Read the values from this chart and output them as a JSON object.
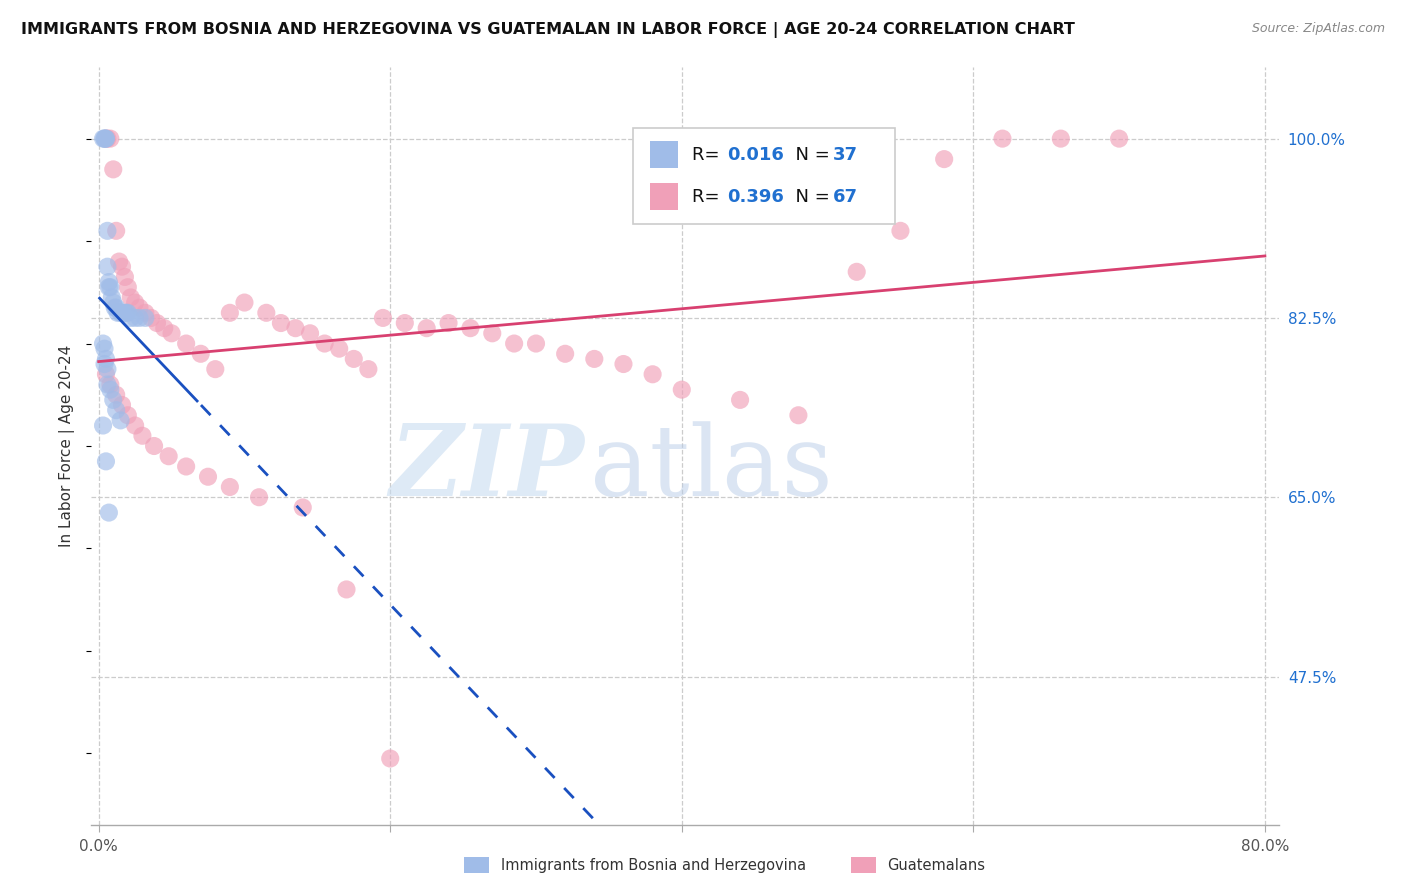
{
  "title": "IMMIGRANTS FROM BOSNIA AND HERZEGOVINA VS GUATEMALAN IN LABOR FORCE | AGE 20-24 CORRELATION CHART",
  "source": "Source: ZipAtlas.com",
  "ylabel": "In Labor Force | Age 20-24",
  "ytick_labels": [
    "100.0%",
    "82.5%",
    "65.0%",
    "47.5%"
  ],
  "ytick_values": [
    1.0,
    0.825,
    0.65,
    0.475
  ],
  "xlim": [
    0.0,
    0.8
  ],
  "ylim": [
    0.33,
    1.07
  ],
  "legend_label_blue": "Immigrants from Bosnia and Herzegovina",
  "legend_label_pink": "Guatemalans",
  "R_blue": "0.016",
  "N_blue": "37",
  "R_pink": "0.396",
  "N_pink": "67",
  "blue_color": "#a0bce8",
  "pink_color": "#f0a0b8",
  "trend_blue_color": "#1a50c0",
  "trend_pink_color": "#d84070",
  "watermark_zip": "ZIP",
  "watermark_atlas": "atlas",
  "blue_x": [
    0.003,
    0.004,
    0.004,
    0.005,
    0.005,
    0.006,
    0.006,
    0.007,
    0.007,
    0.008,
    0.009,
    0.01,
    0.011,
    0.012,
    0.013,
    0.015,
    0.016,
    0.018,
    0.019,
    0.02,
    0.022,
    0.025,
    0.028,
    0.032,
    0.003,
    0.004,
    0.005,
    0.006,
    0.008,
    0.01,
    0.012,
    0.015,
    0.003,
    0.005,
    0.007,
    0.004,
    0.006
  ],
  "blue_y": [
    1.0,
    1.0,
    1.0,
    1.0,
    1.0,
    0.91,
    0.875,
    0.86,
    0.855,
    0.855,
    0.845,
    0.84,
    0.835,
    0.835,
    0.83,
    0.83,
    0.83,
    0.83,
    0.83,
    0.83,
    0.825,
    0.825,
    0.825,
    0.825,
    0.8,
    0.795,
    0.785,
    0.775,
    0.755,
    0.745,
    0.735,
    0.725,
    0.72,
    0.685,
    0.635,
    0.78,
    0.76
  ],
  "pink_x": [
    0.005,
    0.006,
    0.008,
    0.01,
    0.012,
    0.014,
    0.016,
    0.018,
    0.02,
    0.022,
    0.025,
    0.028,
    0.032,
    0.036,
    0.04,
    0.045,
    0.05,
    0.06,
    0.07,
    0.08,
    0.09,
    0.1,
    0.115,
    0.125,
    0.135,
    0.145,
    0.155,
    0.165,
    0.175,
    0.185,
    0.195,
    0.21,
    0.225,
    0.24,
    0.255,
    0.27,
    0.285,
    0.3,
    0.32,
    0.34,
    0.36,
    0.38,
    0.4,
    0.44,
    0.48,
    0.52,
    0.55,
    0.58,
    0.62,
    0.66,
    0.7,
    0.005,
    0.008,
    0.012,
    0.016,
    0.02,
    0.025,
    0.03,
    0.038,
    0.048,
    0.06,
    0.075,
    0.09,
    0.11,
    0.14,
    0.17,
    0.2
  ],
  "pink_y": [
    1.0,
    1.0,
    1.0,
    0.97,
    0.91,
    0.88,
    0.875,
    0.865,
    0.855,
    0.845,
    0.84,
    0.835,
    0.83,
    0.825,
    0.82,
    0.815,
    0.81,
    0.8,
    0.79,
    0.775,
    0.83,
    0.84,
    0.83,
    0.82,
    0.815,
    0.81,
    0.8,
    0.795,
    0.785,
    0.775,
    0.825,
    0.82,
    0.815,
    0.82,
    0.815,
    0.81,
    0.8,
    0.8,
    0.79,
    0.785,
    0.78,
    0.77,
    0.755,
    0.745,
    0.73,
    0.87,
    0.91,
    0.98,
    1.0,
    1.0,
    1.0,
    0.77,
    0.76,
    0.75,
    0.74,
    0.73,
    0.72,
    0.71,
    0.7,
    0.69,
    0.68,
    0.67,
    0.66,
    0.65,
    0.64,
    0.56,
    0.395
  ]
}
